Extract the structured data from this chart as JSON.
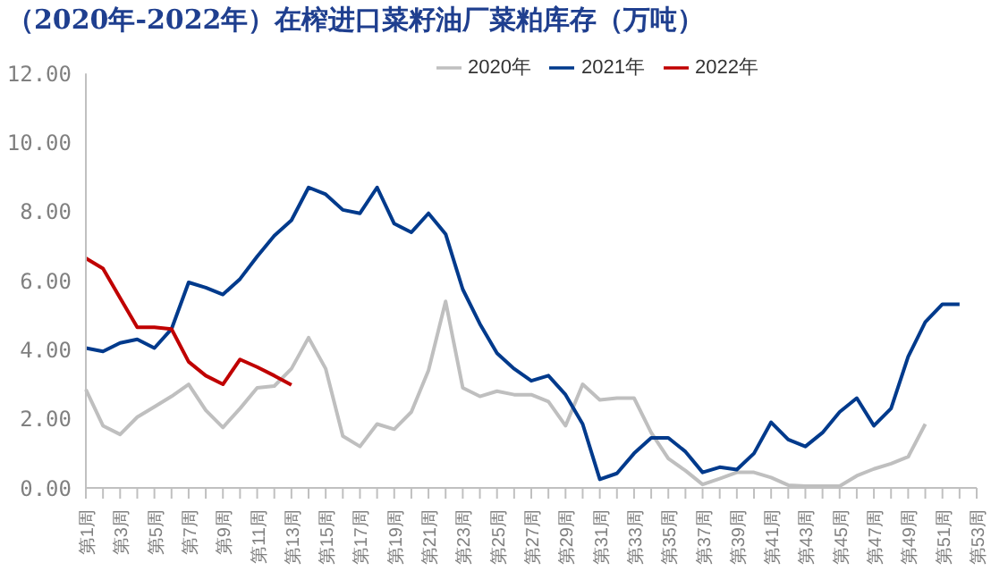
{
  "chart_data": {
    "type": "line",
    "title": "（2020年-2022年）在榨进口菜籽油厂菜粕库存（万吨）",
    "categories": [
      "第1周",
      null,
      "第3周",
      null,
      "第5周",
      null,
      "第7周",
      null,
      "第9周",
      null,
      "第11周",
      null,
      "第13周",
      null,
      "第15周",
      null,
      "第17周",
      null,
      "第19周",
      null,
      "第21周",
      null,
      "第23周",
      null,
      "第25周",
      null,
      "第27周",
      null,
      "第29周",
      null,
      "第31周",
      null,
      "第33周",
      null,
      "第35周",
      null,
      "第37周",
      null,
      "第39周",
      null,
      "第41周",
      null,
      "第43周",
      null,
      "第45周",
      null,
      "第47周",
      null,
      "第49周",
      null,
      "第51周",
      null,
      "第53周"
    ],
    "series": [
      {
        "name": "2020年",
        "color": "#bfbfbf",
        "values": [
          2.85,
          1.8,
          1.55,
          2.05,
          2.35,
          2.65,
          3.0,
          2.25,
          1.75,
          2.3,
          2.9,
          2.95,
          3.45,
          4.35,
          3.45,
          1.5,
          1.2,
          1.85,
          1.7,
          2.2,
          3.4,
          5.4,
          2.9,
          2.65,
          2.8,
          2.7,
          2.7,
          2.5,
          1.8,
          3.0,
          2.55,
          2.6,
          2.6,
          1.6,
          0.85,
          0.5,
          0.1,
          0.27,
          0.45,
          0.45,
          0.3,
          0.08,
          0.05,
          0.05,
          0.05,
          0.35,
          0.55,
          0.7,
          0.9,
          1.85,
          null,
          null,
          null
        ]
      },
      {
        "name": "2021年",
        "color": "#003a8c",
        "values": [
          4.05,
          3.95,
          4.2,
          4.3,
          4.05,
          4.6,
          5.95,
          5.8,
          5.6,
          6.05,
          6.7,
          7.3,
          7.75,
          8.7,
          8.5,
          8.05,
          7.95,
          8.7,
          7.65,
          7.4,
          7.95,
          7.35,
          5.75,
          4.75,
          3.9,
          3.45,
          3.1,
          3.25,
          2.7,
          1.85,
          0.25,
          0.42,
          1.0,
          1.45,
          1.45,
          1.05,
          0.45,
          0.6,
          0.53,
          1.0,
          1.9,
          1.4,
          1.2,
          1.6,
          2.2,
          2.6,
          1.8,
          2.3,
          3.8,
          4.8,
          5.32,
          5.32,
          null
        ]
      },
      {
        "name": "2022年",
        "color": "#c00000",
        "values": [
          6.65,
          6.35,
          5.5,
          4.65,
          4.65,
          4.6,
          3.65,
          3.25,
          3.0,
          3.72,
          3.5,
          3.25,
          2.98,
          null,
          null,
          null,
          null,
          null,
          null,
          null,
          null,
          null,
          null,
          null,
          null,
          null,
          null,
          null,
          null,
          null,
          null,
          null,
          null,
          null,
          null,
          null,
          null,
          null,
          null,
          null,
          null,
          null,
          null,
          null,
          null,
          null,
          null,
          null,
          null,
          null,
          null,
          null,
          null
        ]
      }
    ],
    "ylim": [
      0,
      12
    ],
    "yticks": [
      {
        "value": 0,
        "label": "0.00"
      },
      {
        "value": 2,
        "label": "2.00"
      },
      {
        "value": 4,
        "label": "4.00"
      },
      {
        "value": 6,
        "label": "6.00"
      },
      {
        "value": 8,
        "label": "8.00"
      },
      {
        "value": 10,
        "label": "10.00"
      },
      {
        "value": 12,
        "label": "12.00"
      }
    ],
    "legend": "top right",
    "marker": "none",
    "line_style": "solid"
  }
}
